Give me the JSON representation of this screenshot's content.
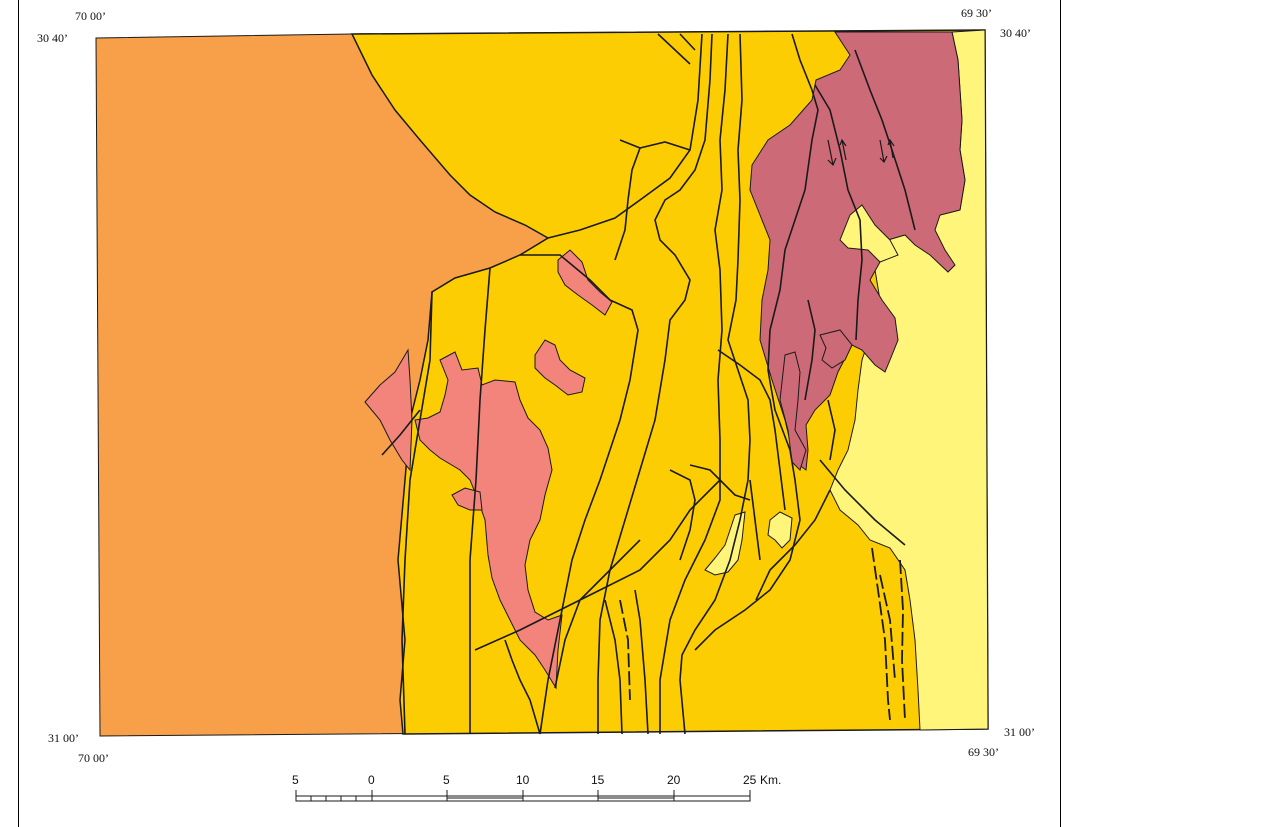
{
  "map": {
    "corner_labels": {
      "top_left_lon": "70 00’",
      "top_left_lat": "30 40’",
      "top_right_lon": "69 30’",
      "top_right_lat": "30 40’",
      "bottom_left_lat": "31 00’",
      "bottom_left_lon": "70 00’",
      "bottom_right_lat": "31 00’",
      "bottom_right_lon": "69 30’"
    },
    "scale_bar": {
      "labels": [
        "5",
        "0",
        "5",
        "10",
        "15",
        "20",
        "25"
      ],
      "unit": "Km."
    },
    "colors": {
      "orange_unit": "#f7a049",
      "yellow_orange_unit": "#fdcd04",
      "light_yellow_unit": "#fff57a",
      "pink_unit": "#f2847b",
      "mauve_unit": "#cd6a77",
      "lines": "#1a1a1a"
    }
  }
}
